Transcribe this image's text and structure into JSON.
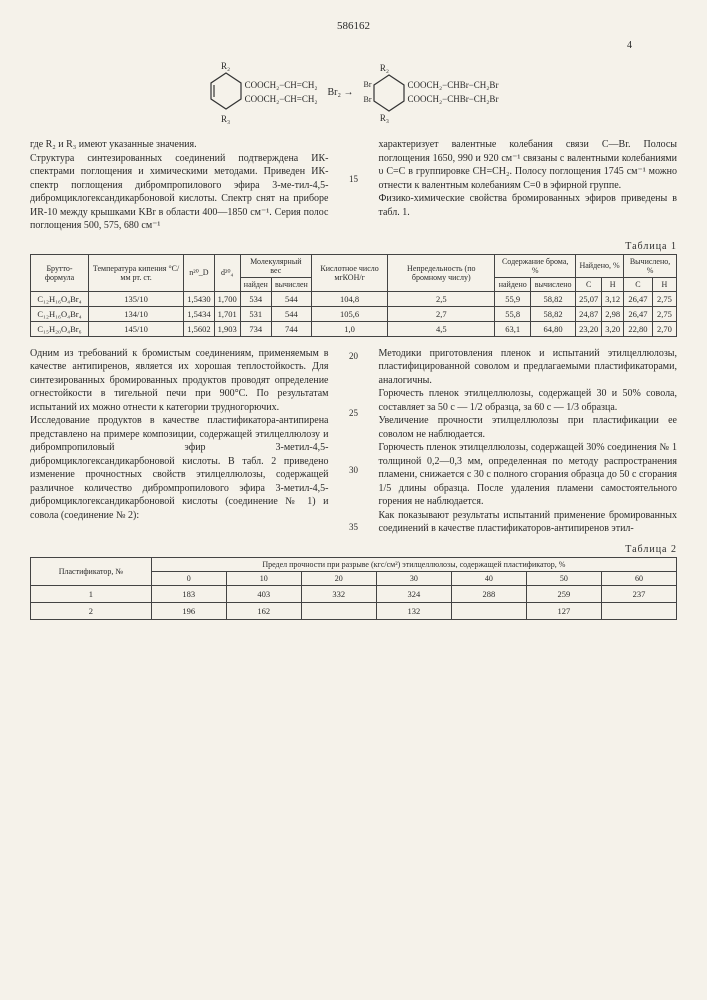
{
  "page_number": "586162",
  "col_marker": "4",
  "chem": {
    "left": {
      "r2": "R₂",
      "r3": "R₃",
      "line1": "COOCH₂−CH=CH₂",
      "line2": "COOCH₂−CH=CH₂"
    },
    "arrow": "Br₂ →",
    "right": {
      "r2": "R₂",
      "r3": "R₃",
      "br_top": "Br",
      "br_bot": "Br",
      "line1": "COOCH₂−CHBr−CH₂Br",
      "line2": "COOCH₂−CHBr−CH₂Br"
    }
  },
  "para_top_left": "где R₂ и R₃ имеют указанные значения.\nСтруктура синтезированных соединений подтверждена ИК-спектрами поглощения и химическими методами. Приведен ИК-спектр поглощения дибромпропилового эфира 3-ме-тил-4,5-дибромциклогександикарбоновой кислоты. Спектр снят на приборе ИR-10 между крышками KBr в области 400—1850 см⁻¹. Серия полос поглощения 500, 575, 680 см⁻¹",
  "para_top_right": "характеризует валентные колебания связи C—Br. Полосы поглощения 1650, 990 и 920 см⁻¹ связаны с валентными колебаниями υ C=C в группировке CH=CH₂. Полосу поглощения 1745 см⁻¹ можно отнести к валентным колебаниям C=0 в эфирной группе.\nФизико-химические свойства бромированных эфиров приведены в табл. 1.",
  "line_num_top": "15",
  "table1_label": "Таблица 1",
  "table1": {
    "headers_row1": [
      "Брутто-формула",
      "Температура кипения °С/мм рт. ст.",
      "n²⁰_D",
      "d²⁰₄",
      "Молекулярный вес",
      "Кислотное число мгКОН/г",
      "Непредельность (по бромному числу)",
      "Содержание брома, %",
      "Найдено, %",
      "Вычислено, %"
    ],
    "headers_row2_mol": [
      "найден",
      "вычислен"
    ],
    "headers_row2_br": [
      "найдено",
      "вычислено"
    ],
    "headers_row2_found": [
      "C",
      "H"
    ],
    "headers_row2_calc": [
      "C",
      "H"
    ],
    "rows": [
      [
        "C₁₂H₁₆O₄Br₄",
        "135/10",
        "1,5430",
        "1,700",
        "534",
        "544",
        "104,8",
        "2,5",
        "55,9",
        "58,82",
        "25,07",
        "3,12",
        "26,47",
        "2,75"
      ],
      [
        "C₁₂H₁₆O₄Br₄",
        "134/10",
        "1,5434",
        "1,701",
        "531",
        "544",
        "105,6",
        "2,7",
        "55,8",
        "58,82",
        "24,87",
        "2,98",
        "26,47",
        "2,75"
      ],
      [
        "C₁₅H₂₀O₄Br₆",
        "145/10",
        "1,5602",
        "1,903",
        "734",
        "744",
        "1,0",
        "4,5",
        "63,1",
        "64,80",
        "23,20",
        "3,20",
        "22,80",
        "2,70"
      ]
    ]
  },
  "para_mid_left": "Одним из требований к бромистым соединениям, применяемым в качестве антипиренов, является их хорошая теплостойкость. Для синтезированных бромированных продуктов проводят определение огнестойкости в тигельной печи при 900°С. По результатам испытаний их можно отнести к категории трудногорючих.\nИсследование продуктов в качестве пластификатора-антипирена представлено на примере композиции, содержащей этилцеллюлозу и дибромпропиловый эфир 3-метил-4,5-дибромциклогександикарбоновой кислоты. В табл. 2 приведено изменение прочностных свойств этилцеллюлозы, содержащей различное количество дибромпропилового эфира 3-метил-4,5-дибромциклогександикарбоновой кислоты (соединение № 1) и совола (соединение № 2):",
  "para_mid_right": "Методики приготовления пленок и испытаний этилцеллюлозы, пластифицированной соволом и предлагаемыми пластификаторами, аналогичны.\nГорючесть пленок этилцеллюлозы, содержащей 30 и 50% совола, составляет за 50 с — 1/2 образца, за 60 с — 1/3 образца.\nУвеличение прочности этилцеллюлозы при пластификации ее соволом не наблюдается.\nГорючесть пленок этилцеллюлозы, содержащей 30% соединения № 1 толщиной 0,2—0,3 мм, определенная по методу распространения пламени, снижается с 30 с полного сгорания образца до 50 с сгорания 1/5 длины образца. После удаления пламени самостоятельного горения не наблюдается.\nКак показывают результаты испытаний применение бромированных соединений в качестве пластификаторов-антипиренов этил-",
  "mid_line_nums": [
    "20",
    "25",
    "30",
    "35"
  ],
  "table2_label": "Таблица 2",
  "table2": {
    "header_main": "Предел прочности при разрыве (кгс/см²) этилцеллюлозы, содержащей пластификатор, %",
    "header_left": "Пластификатор, №",
    "cols": [
      "0",
      "10",
      "20",
      "30",
      "40",
      "50",
      "60"
    ],
    "rows": [
      [
        "1",
        "183",
        "403",
        "332",
        "324",
        "288",
        "259",
        "237"
      ],
      [
        "2",
        "196",
        "162",
        "",
        "132",
        "",
        "127",
        ""
      ]
    ]
  }
}
